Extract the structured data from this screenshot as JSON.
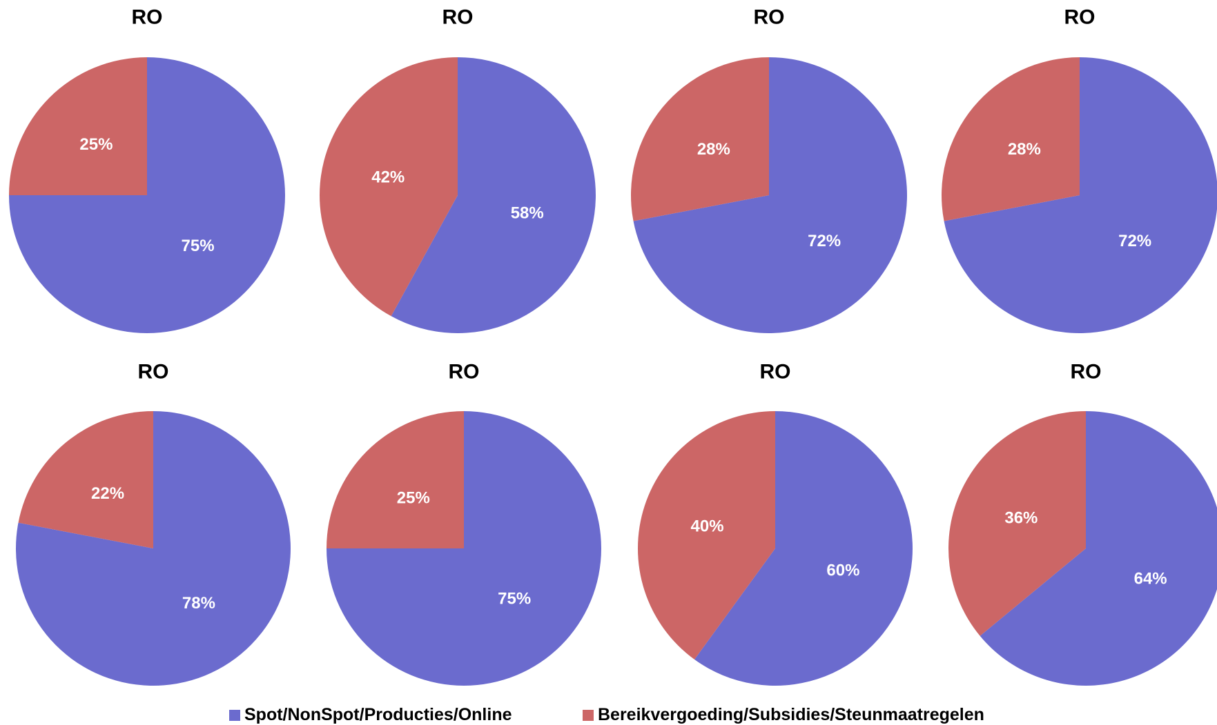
{
  "chart_data": [
    {
      "type": "pie",
      "title": "RO",
      "labels": [
        "Spot/NonSpot/Producties/Online",
        "Bereikvergoeding/Subsidies/Steunmaatregelen"
      ],
      "values": [
        75,
        25
      ]
    },
    {
      "type": "pie",
      "title": "RO",
      "labels": [
        "Spot/NonSpot/Producties/Online",
        "Bereikvergoeding/Subsidies/Steunmaatregelen"
      ],
      "values": [
        58,
        42
      ]
    },
    {
      "type": "pie",
      "title": "RO",
      "labels": [
        "Spot/NonSpot/Producties/Online",
        "Bereikvergoeding/Subsidies/Steunmaatregelen"
      ],
      "values": [
        72,
        28
      ]
    },
    {
      "type": "pie",
      "title": "RO",
      "labels": [
        "Spot/NonSpot/Producties/Online",
        "Bereikvergoeding/Subsidies/Steunmaatregelen"
      ],
      "values": [
        72,
        28
      ]
    },
    {
      "type": "pie",
      "title": "RO",
      "labels": [
        "Spot/NonSpot/Producties/Online",
        "Bereikvergoeding/Subsidies/Steunmaatregelen"
      ],
      "values": [
        78,
        22
      ]
    },
    {
      "type": "pie",
      "title": "RO",
      "labels": [
        "Spot/NonSpot/Producties/Online",
        "Bereikvergoeding/Subsidies/Steunmaatregelen"
      ],
      "values": [
        75,
        25
      ]
    },
    {
      "type": "pie",
      "title": "RO",
      "labels": [
        "Spot/NonSpot/Producties/Online",
        "Bereikvergoeding/Subsidies/Steunmaatregelen"
      ],
      "values": [
        60,
        40
      ]
    },
    {
      "type": "pie",
      "title": "RO",
      "labels": [
        "Spot/NonSpot/Producties/Online",
        "Bereikvergoeding/Subsidies/Steunmaatregelen"
      ],
      "values": [
        64,
        36
      ]
    }
  ],
  "legend": {
    "items": [
      {
        "label": "Spot/NonSpot/Producties/Online",
        "color": "#6b6bce"
      },
      {
        "label": "Bereikvergoeding/Subsidies/Steunmaatregelen",
        "color": "#cc6666"
      }
    ]
  }
}
